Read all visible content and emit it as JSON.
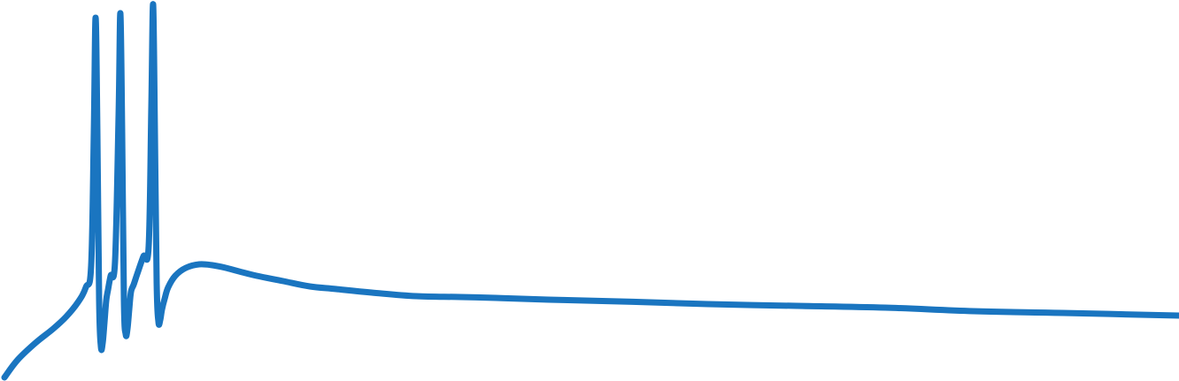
{
  "chart_data": {
    "type": "line",
    "title": "",
    "xlabel": "",
    "ylabel": "",
    "grid": false,
    "legend": "none",
    "xlim": [
      0,
      1332
    ],
    "ylim": [
      -431,
      0
    ],
    "series": [
      {
        "color": "#1a75c0",
        "x": [
          5,
          20,
          40,
          60,
          75,
          88,
          97,
          103,
          106,
          108,
          110,
          112,
          114,
          116,
          118,
          120,
          122,
          125,
          130,
          134,
          136,
          138,
          140,
          142,
          144,
          146,
          148,
          151,
          155,
          162,
          168,
          171,
          173,
          175,
          177,
          179,
          181,
          183,
          186,
          190,
          198,
          210,
          225,
          240,
          255,
          270,
          290,
          320,
          350,
          380,
          420,
          470,
          520,
          560,
          620,
          700,
          800,
          900,
          1000,
          1100,
          1200,
          1332
        ],
        "y": [
          -427,
          -407,
          -388,
          -372,
          -358,
          -342,
          -325,
          -300,
          -150,
          -20,
          -150,
          -340,
          -392,
          -388,
          -365,
          -340,
          -328,
          -312,
          -295,
          -130,
          -15,
          -150,
          -340,
          -378,
          -372,
          -350,
          -330,
          -322,
          -310,
          -290,
          -278,
          -120,
          -5,
          -150,
          -320,
          -364,
          -362,
          -350,
          -338,
          -325,
          -312,
          -303,
          -299,
          -300,
          -303,
          -307,
          -312,
          -318,
          -324,
          -327,
          -331,
          -335,
          -336,
          -337,
          -339,
          -341,
          -344,
          -346,
          -348,
          -352,
          -354,
          -357
        ]
      }
    ]
  }
}
